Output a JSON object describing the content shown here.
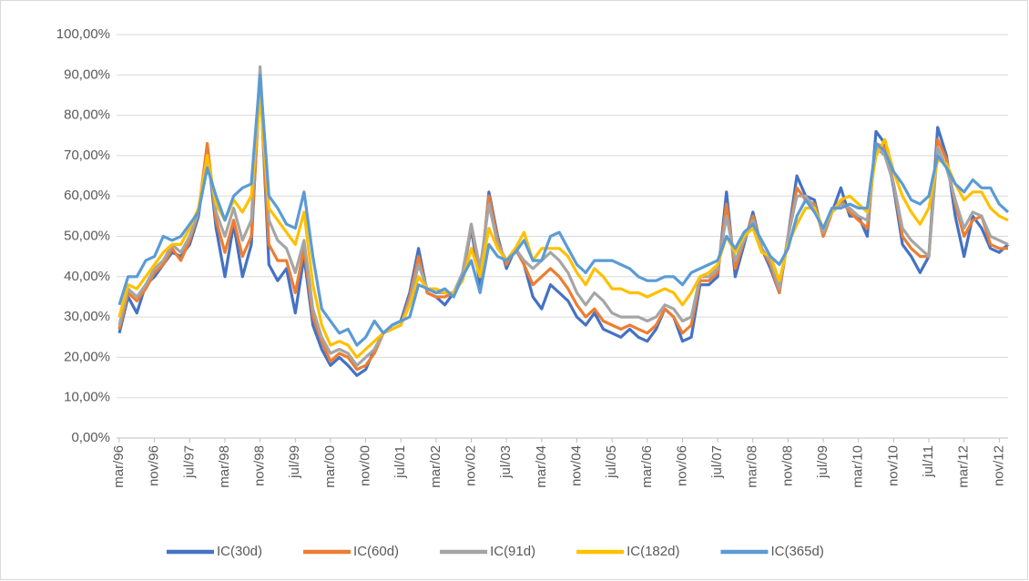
{
  "chart_data": {
    "type": "line",
    "categories": [
      "mar/96",
      null,
      null,
      null,
      "nov/96",
      null,
      null,
      null,
      "jul/97",
      null,
      null,
      null,
      "mar/98",
      null,
      null,
      null,
      "nov/98",
      null,
      null,
      null,
      "jul/99",
      null,
      null,
      null,
      "mar/00",
      null,
      null,
      null,
      "nov/00",
      null,
      null,
      null,
      "jul/01",
      null,
      null,
      null,
      "mar/02",
      null,
      null,
      null,
      "nov/02",
      null,
      null,
      null,
      "jul/03",
      null,
      null,
      null,
      "mar/04",
      null,
      null,
      null,
      "nov/04",
      null,
      null,
      null,
      "jul/05",
      null,
      null,
      null,
      "mar/06",
      null,
      null,
      null,
      "nov/06",
      null,
      null,
      null,
      "jul/07",
      null,
      null,
      null,
      "mar/08",
      null,
      null,
      null,
      "nov/08",
      null,
      null,
      null,
      "jul/09",
      null,
      null,
      null,
      "mar/10",
      null,
      null,
      null,
      "nov/10",
      null,
      null,
      null,
      "jul/11",
      null,
      null,
      null,
      "mar/12",
      null,
      null,
      null,
      "nov/12",
      null
    ],
    "series": [
      {
        "name": "IC(30d)",
        "color": "#4472c4",
        "values": [
          26,
          35,
          31,
          38,
          40,
          43,
          46,
          45,
          48,
          55,
          72,
          52,
          40,
          53,
          40,
          48,
          90,
          43,
          39,
          42,
          31,
          45,
          28,
          22,
          18,
          20,
          18,
          15.5,
          17,
          22,
          26,
          28,
          29,
          36,
          47,
          36,
          35,
          33,
          36,
          40,
          52,
          38,
          61,
          50,
          42,
          47,
          43,
          35,
          32,
          38,
          36,
          34,
          30,
          28,
          31,
          27,
          26,
          25,
          27,
          25,
          24,
          27,
          32,
          30,
          24,
          25,
          38,
          38,
          40,
          61,
          40,
          48,
          56,
          47,
          42,
          36,
          50,
          65,
          60,
          59,
          50,
          56,
          62,
          55,
          55,
          50,
          76,
          73,
          62,
          48,
          45,
          41,
          45,
          77,
          70,
          55,
          45,
          55,
          52,
          47,
          46,
          48
        ]
      },
      {
        "name": "IC(60d)",
        "color": "#ed7d31",
        "values": [
          27,
          36,
          34,
          37,
          41,
          43,
          47,
          44,
          49,
          56,
          73,
          54,
          46,
          54,
          45,
          50,
          88,
          48,
          44,
          44,
          36,
          47,
          30,
          24,
          19,
          21,
          20,
          17,
          18,
          21,
          26,
          27,
          28,
          35,
          45,
          36,
          35,
          35,
          36,
          40,
          53,
          40,
          60,
          49,
          43,
          47,
          43,
          38,
          40,
          42,
          40,
          37,
          33,
          30,
          32,
          29,
          28,
          27,
          28,
          27,
          26,
          28,
          32,
          30,
          26,
          28,
          39,
          39,
          41,
          58,
          42,
          49,
          55,
          47,
          43,
          36,
          50,
          62,
          59,
          58,
          50,
          56,
          59,
          56,
          54,
          52,
          73,
          72,
          63,
          50,
          47,
          45,
          45,
          74,
          69,
          58,
          50,
          54,
          55,
          48,
          47,
          47
        ]
      },
      {
        "name": "IC(91d)",
        "color": "#a5a5a5",
        "values": [
          28,
          37,
          35,
          38,
          42,
          44,
          48,
          46,
          50,
          56,
          70,
          56,
          50,
          57,
          49,
          54,
          92,
          54,
          49,
          47,
          41,
          49,
          32,
          25,
          21,
          22,
          21,
          18,
          20,
          22,
          26,
          27,
          28,
          34,
          43,
          37,
          36,
          36,
          36,
          41,
          53,
          42,
          58,
          48,
          44,
          47,
          44,
          42,
          44,
          46,
          44,
          41,
          36,
          33,
          36,
          34,
          31,
          30,
          30,
          30,
          29,
          30,
          33,
          32,
          29,
          30,
          40,
          40,
          42,
          55,
          44,
          49,
          54,
          47,
          44,
          37,
          50,
          60,
          60,
          57,
          51,
          56,
          58,
          57,
          55,
          54,
          72,
          70,
          63,
          52,
          49,
          47,
          45,
          72,
          67,
          59,
          52,
          56,
          55,
          50,
          49,
          48
        ]
      },
      {
        "name": "IC(182d)",
        "color": "#ffc000",
        "values": [
          30,
          38,
          37,
          40,
          43,
          46,
          48,
          48,
          52,
          57,
          70,
          58,
          54,
          59,
          56,
          60,
          85,
          57,
          54,
          51,
          48,
          56,
          38,
          28,
          23,
          24,
          23,
          20,
          22,
          24,
          26,
          27,
          28,
          33,
          40,
          37,
          37,
          36,
          36,
          39,
          47,
          40,
          52,
          47,
          44,
          47,
          51,
          44,
          47,
          47,
          47,
          45,
          41,
          38,
          42,
          40,
          37,
          37,
          36,
          36,
          35,
          36,
          37,
          36,
          33,
          36,
          40,
          41,
          43,
          50,
          46,
          50,
          52,
          46,
          45,
          39,
          48,
          53,
          57,
          57,
          52,
          56,
          59,
          60,
          58,
          56,
          70,
          74,
          66,
          60,
          56,
          53,
          57,
          69,
          68,
          63,
          59,
          61,
          61,
          57,
          55,
          54
        ]
      },
      {
        "name": "IC(365d)",
        "color": "#5b9bd5",
        "values": [
          33,
          40,
          40,
          44,
          45,
          50,
          49,
          50,
          53,
          56,
          67,
          60,
          54,
          60,
          62,
          63,
          90,
          60,
          57,
          53,
          52,
          61,
          45,
          32,
          29,
          26,
          27,
          23,
          25,
          29,
          26,
          28,
          29,
          30,
          38,
          37,
          36,
          37,
          35,
          40,
          44,
          36,
          48,
          45,
          44,
          46,
          49,
          44,
          44,
          50,
          51,
          47,
          43,
          41,
          44,
          44,
          44,
          43,
          42,
          40,
          39,
          39,
          40,
          40,
          38,
          41,
          42,
          43,
          44,
          50,
          47,
          51,
          53,
          49,
          45,
          43,
          47,
          55,
          59,
          56,
          52,
          57,
          57,
          58,
          57,
          57,
          73,
          71,
          66,
          63,
          59,
          58,
          60,
          70,
          67,
          63,
          61,
          64,
          62,
          62,
          58,
          56
        ]
      }
    ],
    "ylim": [
      0,
      100
    ],
    "yticks": [
      {
        "value": 0,
        "label": "0,00%"
      },
      {
        "value": 10,
        "label": "10,00%"
      },
      {
        "value": 20,
        "label": "20,00%"
      },
      {
        "value": 30,
        "label": "30,00%"
      },
      {
        "value": 40,
        "label": "40,00%"
      },
      {
        "value": 50,
        "label": "50,00%"
      },
      {
        "value": 60,
        "label": "60,00%"
      },
      {
        "value": 70,
        "label": "70,00%"
      },
      {
        "value": 80,
        "label": "80,00%"
      },
      {
        "value": 90,
        "label": "90,00%"
      },
      {
        "value": 100,
        "label": "100,00%"
      }
    ],
    "grid": true,
    "legend": "bottom"
  }
}
